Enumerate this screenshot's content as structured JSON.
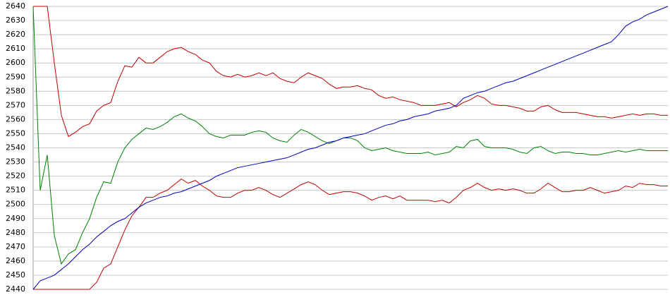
{
  "chart_data": {
    "type": "line",
    "ylim": [
      2440,
      2640
    ],
    "yticks": [
      2440,
      2450,
      2460,
      2470,
      2480,
      2490,
      2500,
      2510,
      2520,
      2530,
      2540,
      2550,
      2560,
      2570,
      2580,
      2590,
      2600,
      2610,
      2620,
      2630,
      2640
    ],
    "grid": true,
    "series": [
      {
        "color": "#c00000",
        "values": [
          2640,
          2640,
          2640,
          2600,
          2563,
          2548,
          2551,
          2555,
          2557,
          2566,
          2570,
          2572,
          2587,
          2598,
          2597,
          2604,
          2600,
          2600,
          2604,
          2608,
          2610,
          2611,
          2608,
          2606,
          2602,
          2600,
          2594,
          2591,
          2590,
          2592,
          2590,
          2591,
          2593,
          2591,
          2593,
          2589,
          2587,
          2586,
          2590,
          2593,
          2591,
          2589,
          2585,
          2582,
          2583,
          2583,
          2584,
          2582,
          2581,
          2577,
          2575,
          2576,
          2574,
          2573,
          2572,
          2570,
          2570,
          2570,
          2571,
          2572,
          2569,
          2572,
          2574,
          2577,
          2575,
          2571,
          2570,
          2570,
          2569,
          2568,
          2566,
          2566,
          2569,
          2570,
          2567,
          2565,
          2565,
          2565,
          2564,
          2563,
          2562,
          2562,
          2561,
          2562,
          2563,
          2564,
          2563,
          2564,
          2564,
          2563,
          2563
        ]
      },
      {
        "color": "#008000",
        "values": [
          2640,
          2510,
          2535,
          2478,
          2458,
          2465,
          2468,
          2480,
          2490,
          2505,
          2516,
          2515,
          2530,
          2540,
          2546,
          2550,
          2554,
          2553,
          2555,
          2558,
          2562,
          2564,
          2561,
          2559,
          2555,
          2550,
          2548,
          2547,
          2549,
          2549,
          2549,
          2551,
          2552,
          2551,
          2547,
          2545,
          2544,
          2549,
          2553,
          2551,
          2548,
          2545,
          2543,
          2545,
          2547,
          2547,
          2545,
          2540,
          2538,
          2539,
          2540,
          2538,
          2537,
          2536,
          2536,
          2536,
          2537,
          2535,
          2536,
          2537,
          2541,
          2540,
          2545,
          2546,
          2541,
          2540,
          2540,
          2540,
          2539,
          2537,
          2536,
          2540,
          2541,
          2538,
          2536,
          2537,
          2537,
          2536,
          2536,
          2535,
          2535,
          2536,
          2537,
          2538,
          2537,
          2538,
          2539,
          2538,
          2538,
          2538,
          2538
        ]
      },
      {
        "color": "#c00000",
        "values": [
          2440,
          2440,
          2440,
          2440,
          2440,
          2440,
          2440,
          2440,
          2440,
          2445,
          2455,
          2458,
          2470,
          2482,
          2492,
          2498,
          2505,
          2505,
          2508,
          2510,
          2514,
          2518,
          2515,
          2517,
          2513,
          2510,
          2506,
          2505,
          2505,
          2508,
          2510,
          2510,
          2512,
          2510,
          2507,
          2505,
          2508,
          2511,
          2514,
          2516,
          2514,
          2510,
          2507,
          2508,
          2509,
          2509,
          2508,
          2506,
          2503,
          2505,
          2506,
          2504,
          2506,
          2503,
          2503,
          2503,
          2503,
          2502,
          2503,
          2501,
          2505,
          2510,
          2512,
          2515,
          2512,
          2510,
          2511,
          2510,
          2511,
          2510,
          2508,
          2508,
          2511,
          2515,
          2512,
          2509,
          2509,
          2510,
          2510,
          2512,
          2510,
          2508,
          2509,
          2510,
          2513,
          2512,
          2515,
          2514,
          2514,
          2513,
          2513
        ]
      },
      {
        "color": "#0000c0",
        "values": [
          2440,
          2446,
          2448,
          2450,
          2454,
          2458,
          2463,
          2468,
          2472,
          2477,
          2481,
          2485,
          2488,
          2490,
          2494,
          2498,
          2501,
          2503,
          2505,
          2506,
          2508,
          2509,
          2511,
          2513,
          2515,
          2517,
          2520,
          2522,
          2524,
          2526,
          2527,
          2528,
          2529,
          2530,
          2531,
          2532,
          2533,
          2535,
          2537,
          2539,
          2540,
          2542,
          2544,
          2545,
          2547,
          2548,
          2549,
          2550,
          2552,
          2554,
          2556,
          2557,
          2559,
          2560,
          2562,
          2563,
          2564,
          2566,
          2567,
          2568,
          2570,
          2575,
          2577,
          2579,
          2580,
          2582,
          2584,
          2586,
          2587,
          2589,
          2591,
          2593,
          2595,
          2597,
          2599,
          2601,
          2603,
          2605,
          2607,
          2609,
          2611,
          2613,
          2615,
          2620,
          2626,
          2629,
          2631,
          2634,
          2636,
          2638,
          2640
        ]
      }
    ]
  }
}
